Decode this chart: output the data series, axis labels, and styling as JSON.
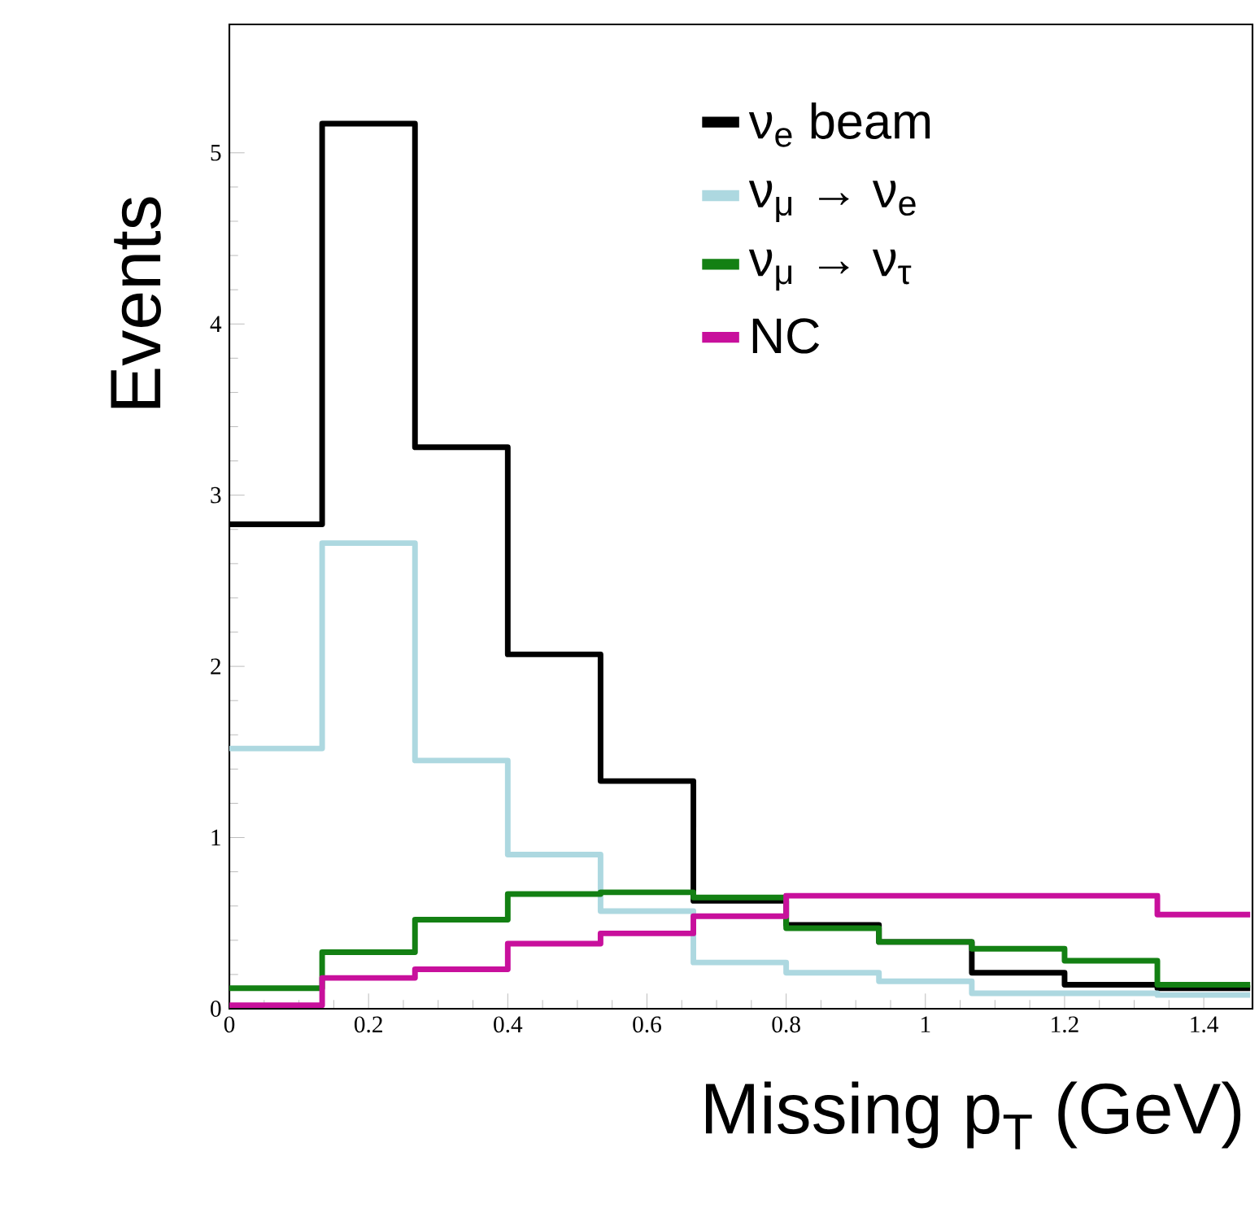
{
  "chart_data": {
    "type": "histogram",
    "xlabel": "Missing p$_{T}$ (GeV)",
    "ylabel": "Events",
    "bins": [
      0,
      0.1333,
      0.2667,
      0.4,
      0.5333,
      0.6667,
      0.8,
      0.9333,
      1.0667,
      1.2,
      1.3333,
      1.4667
    ],
    "xlim": [
      0,
      1.47
    ],
    "ylim": [
      0,
      5.75
    ],
    "xticks": [
      0,
      0.2,
      0.4,
      0.6,
      0.8,
      1,
      1.2,
      1.4
    ],
    "yticks": [
      0,
      1,
      2,
      3,
      4,
      5
    ],
    "legend": "top right",
    "grid": false,
    "series": [
      {
        "name": "ν$_{e}$ beam",
        "color": "#000000",
        "values": [
          2.83,
          5.17,
          3.28,
          2.07,
          1.33,
          0.63,
          0.49,
          0.39,
          0.21,
          0.14,
          0.12
        ]
      },
      {
        "name": "ν$_{μ}$ → ν$_{e}$",
        "color": "#add8e0",
        "values": [
          1.52,
          2.72,
          1.45,
          0.9,
          0.57,
          0.27,
          0.21,
          0.16,
          0.09,
          0.09,
          0.08
        ]
      },
      {
        "name": "ν$_{μ}$ → ν$_{τ}$",
        "color": "#138013",
        "values": [
          0.12,
          0.33,
          0.52,
          0.67,
          0.68,
          0.65,
          0.47,
          0.39,
          0.35,
          0.28,
          0.14
        ]
      },
      {
        "name": "NC",
        "color": "#c8109c",
        "values": [
          0.02,
          0.18,
          0.23,
          0.38,
          0.44,
          0.54,
          0.66,
          0.66,
          0.66,
          0.66,
          0.55
        ]
      }
    ]
  }
}
